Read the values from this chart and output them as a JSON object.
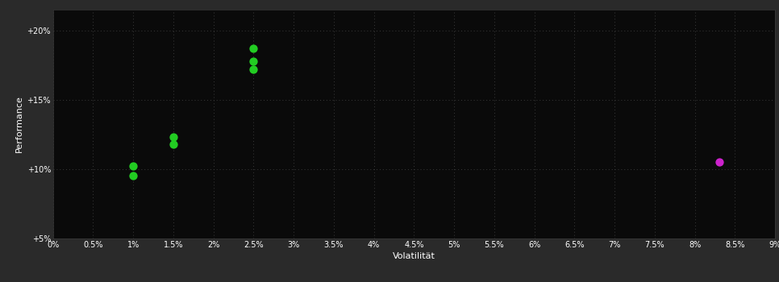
{
  "background_color": "#2a2a2a",
  "plot_bg_color": "#0a0a0a",
  "grid_color": "#3a3a3a",
  "text_color": "#ffffff",
  "green_points": [
    [
      1.0,
      10.2
    ],
    [
      1.0,
      9.5
    ],
    [
      1.5,
      12.3
    ],
    [
      1.5,
      11.8
    ],
    [
      2.5,
      18.7
    ],
    [
      2.5,
      17.8
    ],
    [
      2.5,
      17.2
    ]
  ],
  "magenta_points": [
    [
      8.3,
      10.5
    ]
  ],
  "green_color": "#22cc22",
  "magenta_color": "#cc22cc",
  "xlabel": "Volatilität",
  "ylabel": "Performance",
  "x_ticks": [
    0.0,
    0.5,
    1.0,
    1.5,
    2.0,
    2.5,
    3.0,
    3.5,
    4.0,
    4.5,
    5.0,
    5.5,
    6.0,
    6.5,
    7.0,
    7.5,
    8.0,
    8.5,
    9.0
  ],
  "y_ticks": [
    5,
    10,
    15,
    20
  ],
  "xlim": [
    0.0,
    9.0
  ],
  "ylim": [
    5.0,
    21.5
  ],
  "marker_size": 55,
  "tick_fontsize": 7,
  "label_fontsize": 8
}
